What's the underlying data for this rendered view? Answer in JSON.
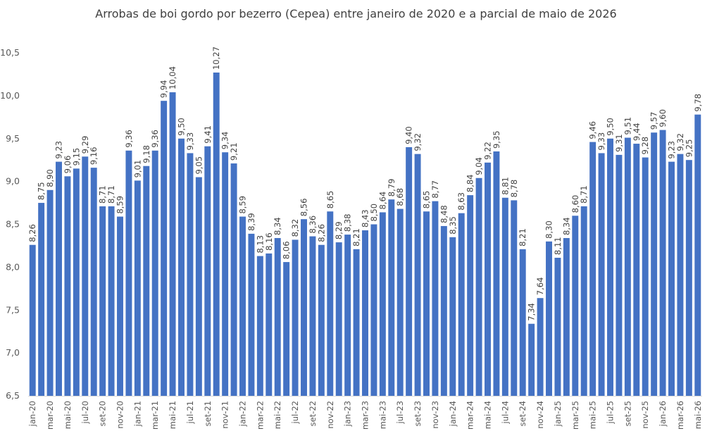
{
  "chart_data": {
    "type": "bar",
    "title": "Arrobas de boi gordo por bezerro (Cepea) entre janeiro de 2020 e a parcial de maio de 2026",
    "xlabel": "",
    "ylabel": "",
    "ylim": [
      6.5,
      10.5
    ],
    "yticks": [
      "6,5",
      "7,0",
      "7,5",
      "8,0",
      "8,5",
      "9,0",
      "9,5",
      "10,0",
      "10,5"
    ],
    "bar_color": "#4472C4",
    "grid": false,
    "legend": "none",
    "categories": [
      "jan-20",
      "fev-20",
      "mar-20",
      "abr-20",
      "mai-20",
      "jun-20",
      "jul-20",
      "ago-20",
      "set-20",
      "out-20",
      "nov-20",
      "dez-20",
      "jan-21",
      "fev-21",
      "mar-21",
      "abr-21",
      "mai-21",
      "jun-21",
      "jul-21",
      "ago-21",
      "set-21",
      "out-21",
      "nov-21",
      "dez-21",
      "jan-22",
      "fev-22",
      "mar-22",
      "abr-22",
      "mai-22",
      "jun-22",
      "jul-22",
      "ago-22",
      "set-22",
      "out-22",
      "nov-22",
      "dez-22",
      "jan-23",
      "fev-23",
      "mar-23",
      "abr-23",
      "mai-23",
      "jun-23",
      "jul-23",
      "ago-23",
      "set-23",
      "out-23",
      "nov-23",
      "dez-23",
      "jan-24",
      "fev-24",
      "mar-24",
      "abr-24",
      "mai-24",
      "jun-24",
      "jul-24",
      "ago-24",
      "set-24",
      "out-24",
      "nov-24",
      "dez-24",
      "jan-25",
      "fev-25",
      "mar-25",
      "abr-25",
      "mai-25",
      "jun-25",
      "jul-25",
      "ago-25",
      "set-25",
      "out-25",
      "nov-25",
      "dez-25",
      "jan-26",
      "fev-26",
      "mar-26",
      "abr-26",
      "mai-26"
    ],
    "x_tick_labels": [
      "jan-20",
      "mar-20",
      "mai-20",
      "jul-20",
      "set-20",
      "nov-20",
      "jan-21",
      "mar-21",
      "mai-21",
      "jul-21",
      "set-21",
      "nov-21",
      "jan-22",
      "mar-22",
      "mai-22",
      "jul-22",
      "set-22",
      "nov-22",
      "jan-23",
      "mar-23",
      "mai-23",
      "jul-23",
      "set-23",
      "nov-23",
      "jan-24",
      "mar-24",
      "mai-24",
      "jul-24",
      "set-24",
      "nov-24",
      "jan-25",
      "mar-25",
      "mai-25",
      "jul-25",
      "set-25",
      "nov-25",
      "jan-26",
      "mar-26",
      "mai-26"
    ],
    "values": [
      8.26,
      8.75,
      8.9,
      9.23,
      9.06,
      9.15,
      9.29,
      9.16,
      8.71,
      8.71,
      8.59,
      9.36,
      9.01,
      9.18,
      9.36,
      9.94,
      10.04,
      9.5,
      9.33,
      9.05,
      9.41,
      10.27,
      9.34,
      9.21,
      8.59,
      8.39,
      8.13,
      8.16,
      8.34,
      8.06,
      8.32,
      8.56,
      8.36,
      8.26,
      8.65,
      8.29,
      8.38,
      8.21,
      8.43,
      8.5,
      8.64,
      8.79,
      8.68,
      9.4,
      9.32,
      8.65,
      8.77,
      8.48,
      8.35,
      8.63,
      8.84,
      9.04,
      9.22,
      9.35,
      8.81,
      8.78,
      8.21,
      7.34,
      7.64,
      8.3,
      8.11,
      8.34,
      8.6,
      8.71,
      9.46,
      9.33,
      9.5,
      9.31,
      9.51,
      9.44,
      9.28,
      9.57,
      9.6,
      9.23,
      9.32,
      9.25,
      9.78
    ],
    "value_labels": [
      "8,26",
      "8,75",
      "8,90",
      "9,23",
      "9,06",
      "9,15",
      "9,29",
      "9,16",
      "8,71",
      "8,71",
      "8,59",
      "9,36",
      "9,01",
      "9,18",
      "9,36",
      "9,94",
      "10,04",
      "9,50",
      "9,33",
      "9,05",
      "9,41",
      "10,27",
      "9,34",
      "9,21",
      "8,59",
      "8,39",
      "8,13",
      "8,16",
      "8,34",
      "8,06",
      "8,32",
      "8,56",
      "8,36",
      "8,26",
      "8,65",
      "8,29",
      "8,38",
      "8,21",
      "8,43",
      "8,50",
      "8,64",
      "8,79",
      "8,68",
      "9,40",
      "9,32",
      "8,65",
      "8,77",
      "8,48",
      "8,35",
      "8,63",
      "8,84",
      "9,04",
      "9,22",
      "9,35",
      "8,81",
      "8,78",
      "8,21",
      "7,34",
      "7,64",
      "8,30",
      "8,11",
      "8,34",
      "8,60",
      "8,71",
      "9,46",
      "9,33",
      "9,50",
      "9,31",
      "9,51",
      "9,44",
      "9,28",
      "9,57",
      "9,60",
      "9,23",
      "9,32",
      "9,25",
      "9,78"
    ]
  }
}
